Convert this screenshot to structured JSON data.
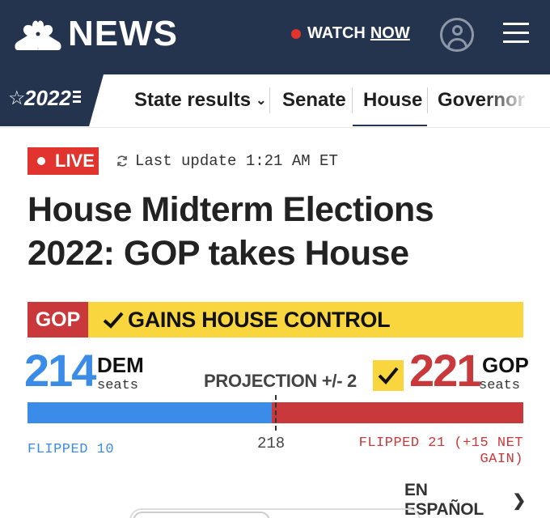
{
  "header": {
    "brand": "NEWS",
    "watch_label": "WATCH",
    "watch_now": "NOW",
    "colors": {
      "header_bg": "#24344f",
      "live_red": "#e2342e"
    }
  },
  "nav": {
    "year": "2022",
    "items": [
      {
        "label": "State results",
        "has_dropdown": true
      },
      {
        "label": "Senate"
      },
      {
        "label": "House",
        "active": true
      },
      {
        "label": "Governor"
      }
    ]
  },
  "status": {
    "live_label": "LIVE",
    "update_text": "Last update 1:21 AM ET"
  },
  "headline": "House Midterm Elections 2022: GOP takes House",
  "results": {
    "banner_party": "GOP",
    "banner_text": "GAINS HOUSE CONTROL",
    "dem": {
      "seats": 214,
      "party": "DEM",
      "seats_label": "seats",
      "flipped": "FLIPPED 10",
      "color": "#3b8be8"
    },
    "gop": {
      "seats": 221,
      "party": "GOP",
      "seats_label": "seats",
      "flipped": "FLIPPED 21 (+15 NET GAIN)",
      "color": "#c9383a",
      "winner": true
    },
    "projection": "PROJECTION +/- 2",
    "majority": 218,
    "total_seats": 435
  },
  "footer": {
    "espanol": "EN ESPAÑOL"
  }
}
